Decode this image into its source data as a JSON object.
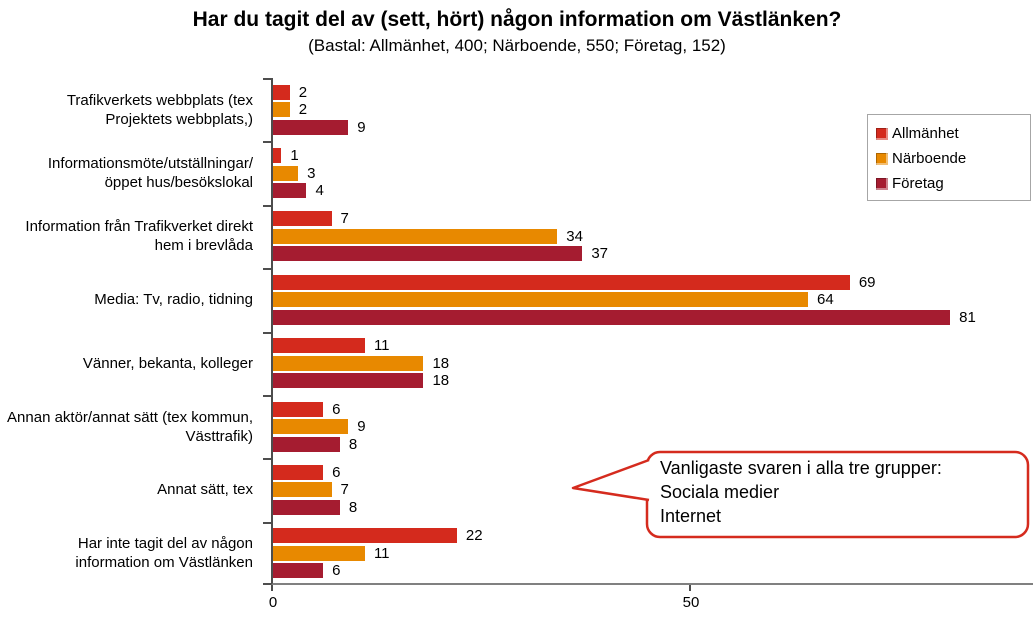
{
  "title": "Har du tagit del av (sett, hört) någon information om Västlänken?",
  "subtitle": "(Bastal: Allmänhet, 400; Närboende, 550; Företag, 152)",
  "chart_data": {
    "type": "bar",
    "orientation": "horizontal",
    "title": "Har du tagit del av (sett, hört) någon information om Västlänken?",
    "subtitle": "(Bastal: Allmänhet, 400; Närboende, 550; Företag, 152)",
    "categories": [
      "Trafikverkets webbplats (tex Projektets webbplats,)",
      "Informationsmöte/utställningar/ öppet hus/besökslokal",
      "Information från Trafikverket direkt hem i brevlåda",
      "Media: Tv, radio, tidning",
      "Vänner, bekanta, kolleger",
      "Annan aktör/annat sätt (tex kommun, Västtrafik)",
      "Annat sätt, tex",
      "Har inte tagit del av någon information om Västlänken"
    ],
    "series": [
      {
        "name": "Allmänhet",
        "color": "#d42a1d",
        "values": [
          2,
          1,
          7,
          69,
          11,
          6,
          6,
          22
        ]
      },
      {
        "name": "Närboende",
        "color": "#e88900",
        "values": [
          2,
          3,
          34,
          64,
          18,
          9,
          7,
          11
        ]
      },
      {
        "name": "Företag",
        "color": "#a51c30",
        "values": [
          9,
          4,
          37,
          81,
          18,
          8,
          8,
          6
        ]
      }
    ],
    "xlabel": "",
    "ylabel": "",
    "x_ticks": [
      0,
      50
    ],
    "xlim": [
      0,
      91
    ],
    "grid": false,
    "legend_position": "top-right",
    "value_labels": true
  },
  "callout": {
    "line1": "Vanligaste svaren i alla tre grupper:",
    "line2": "Sociala medier",
    "line3": "Internet",
    "border_color": "#d52b1e"
  }
}
